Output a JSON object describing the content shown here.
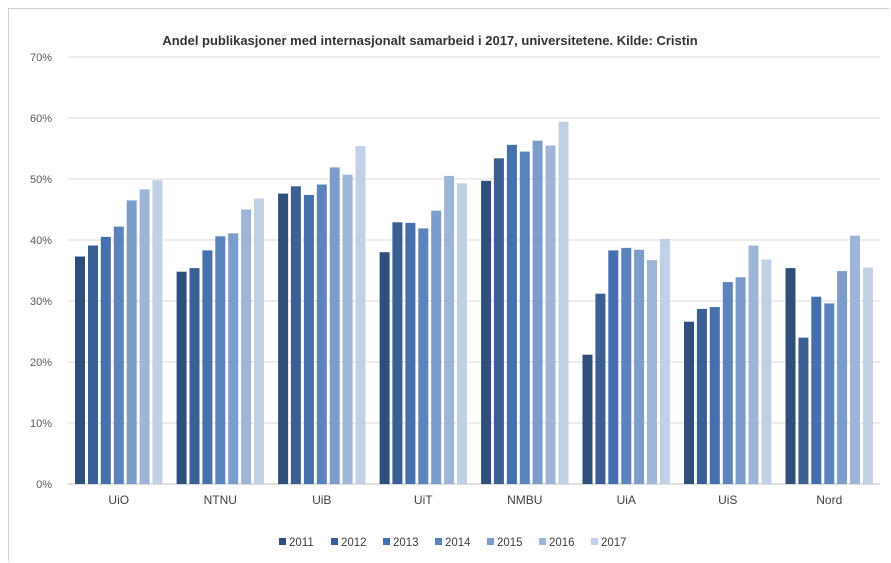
{
  "chart_data": {
    "type": "bar",
    "title": "Andel publikasjoner med internasjonalt samarbeid i 2017, universitetene. Kilde: Cristin",
    "xlabel": "",
    "ylabel": "",
    "ylim": [
      0,
      70
    ],
    "yticks": [
      "0%",
      "10%",
      "20%",
      "30%",
      "40%",
      "50%",
      "60%",
      "70%"
    ],
    "grid": true,
    "legend_position": "bottom",
    "categories": [
      "UiO",
      "NTNU",
      "UiB",
      "UiT",
      "NMBU",
      "UiA",
      "UiS",
      "Nord"
    ],
    "series": [
      {
        "name": "2011",
        "color": "#2f4f7a",
        "values": [
          37.3,
          34.8,
          47.6,
          38.0,
          49.7,
          21.2,
          26.6,
          35.4
        ]
      },
      {
        "name": "2012",
        "color": "#3b5f95",
        "values": [
          39.1,
          35.4,
          48.8,
          42.9,
          53.4,
          31.2,
          28.7,
          24.0
        ]
      },
      {
        "name": "2013",
        "color": "#4570ab",
        "values": [
          40.5,
          38.3,
          47.4,
          42.8,
          55.6,
          38.3,
          29.0,
          30.7
        ]
      },
      {
        "name": "2014",
        "color": "#5a84bb",
        "values": [
          42.2,
          40.6,
          49.1,
          41.9,
          54.5,
          38.7,
          33.1,
          29.6
        ]
      },
      {
        "name": "2015",
        "color": "#7c9dca",
        "values": [
          46.5,
          41.1,
          51.9,
          44.8,
          56.3,
          38.4,
          33.9,
          34.9
        ]
      },
      {
        "name": "2016",
        "color": "#9fb5d8",
        "values": [
          48.3,
          45.0,
          50.7,
          50.5,
          55.5,
          36.7,
          39.1,
          40.7
        ]
      },
      {
        "name": "2017",
        "color": "#c2d0e6",
        "values": [
          49.8,
          46.8,
          55.4,
          49.3,
          59.4,
          40.2,
          36.8,
          35.5
        ]
      }
    ]
  }
}
